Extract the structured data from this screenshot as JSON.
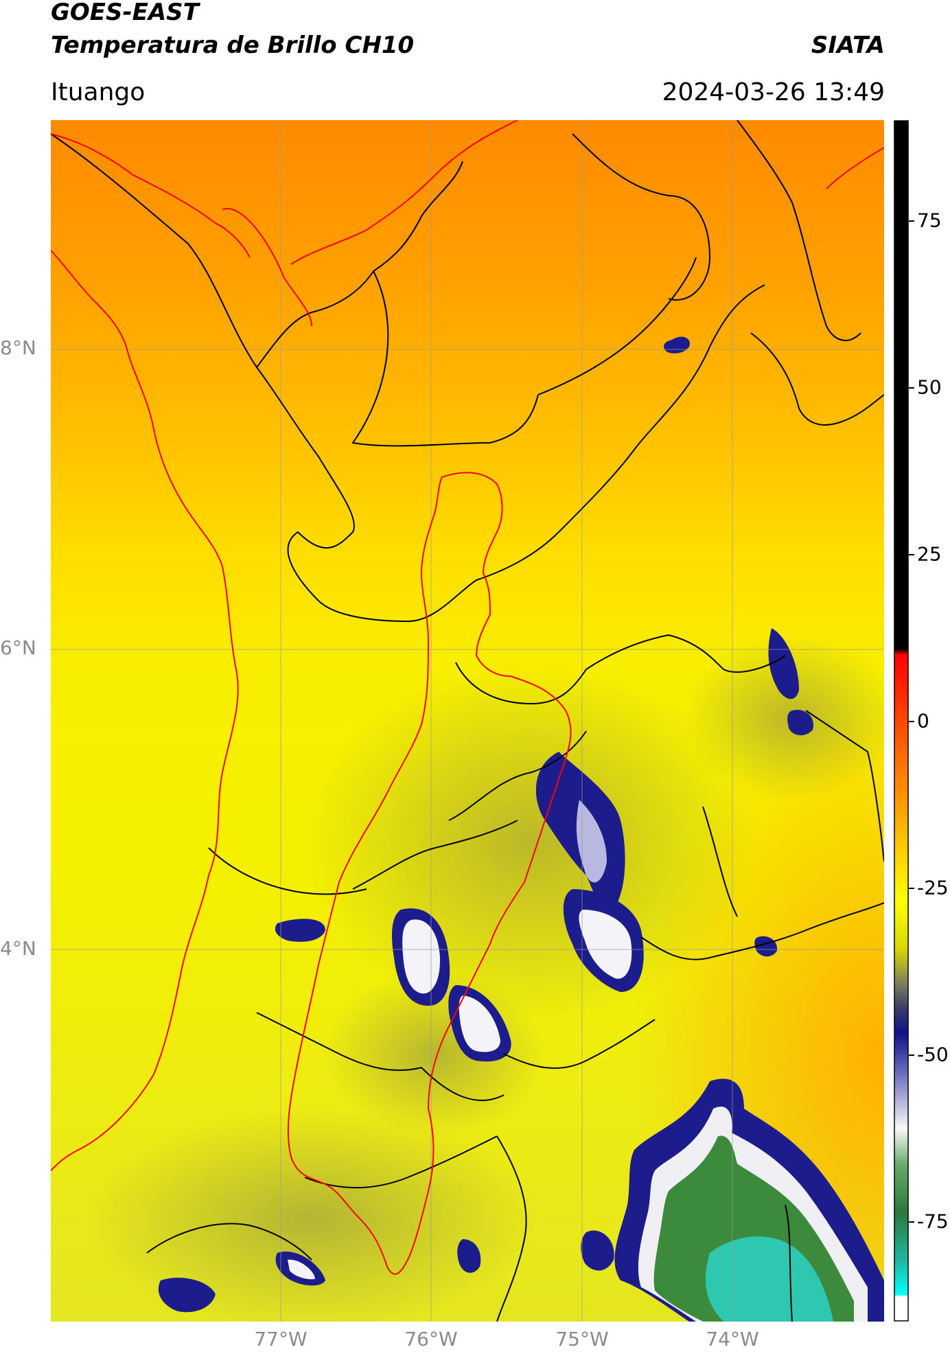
{
  "header": {
    "satellite": "GOES-EAST",
    "product": "Temperatura de Brillo CH10",
    "organization": "SIATA",
    "region": "Ituango",
    "datetime": "2024-03-26 13:49"
  },
  "map": {
    "lat_labels": [
      "8°N",
      "6°N",
      "4°N"
    ],
    "lon_labels": [
      "77°W",
      "76°W",
      "75°W",
      "74°W"
    ],
    "colors": {
      "warm": "#ff8c00",
      "yellow": "#f5f000",
      "cold_blue": "#1c1c8c",
      "white": "#f4f4f8",
      "green": "#3a8a3a",
      "cyan": "#2ec8b0",
      "border": "#000000",
      "basin_outline": "#ff0000",
      "grid": "#9a9a9a"
    }
  },
  "colorbar": {
    "ticks": [
      "75",
      "50",
      "25",
      "0",
      "-25",
      "-50",
      "-75"
    ],
    "tick_values": [
      75,
      50,
      25,
      0,
      -25,
      -50,
      -75
    ],
    "range": [
      -90,
      90
    ]
  }
}
